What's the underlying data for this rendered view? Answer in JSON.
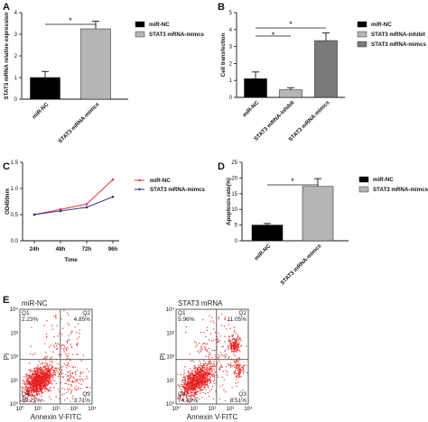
{
  "chart_data": [
    {
      "panel": "A",
      "type": "bar",
      "categories": [
        "miR-NC",
        "STAT3 mRNA-mimcs"
      ],
      "values": [
        1.0,
        3.25
      ],
      "errors": [
        0.28,
        0.35
      ],
      "ylabel": "STAT3 mRNA relative expression",
      "ylim": [
        0,
        4
      ],
      "yticks": [
        "0",
        "1",
        "2",
        "3",
        "4"
      ],
      "colors": [
        "#000000",
        "#b5b5b5"
      ],
      "legend": [
        "miR-NC",
        "STAT3 mRNA-mimcs"
      ],
      "significance": "*"
    },
    {
      "panel": "B",
      "type": "bar",
      "categories": [
        "miR-NC",
        "STAT3 mRNA-inhibit",
        "STAT3 mRNA-mimcs"
      ],
      "values": [
        1.1,
        0.45,
        3.35
      ],
      "errors": [
        0.4,
        0.12,
        0.45
      ],
      "ylabel": "Cell transfection",
      "ylim": [
        0,
        5
      ],
      "yticks": [
        "0",
        "1",
        "2",
        "3",
        "4",
        "5"
      ],
      "colors": [
        "#000000",
        "#b5b5b5",
        "#7a7a7a"
      ],
      "legend": [
        "miR-NC",
        "STAT3 mRNA-inhibit",
        "STAT3 mRNA-mimcs"
      ],
      "significance": [
        "*",
        "*"
      ]
    },
    {
      "panel": "C",
      "type": "line",
      "x": [
        "24h",
        "48h",
        "72h",
        "96h"
      ],
      "xlabel": "Time",
      "ylabel": "OD450nm",
      "ylim": [
        0.0,
        1.5
      ],
      "yticks": [
        "0.0",
        "0.5",
        "1.0",
        "1.5"
      ],
      "series": [
        {
          "name": "miR-NC",
          "values": [
            0.5,
            0.6,
            0.7,
            1.17
          ],
          "color": "#e8333a"
        },
        {
          "name": "STAT3 mRNA-mimcs",
          "values": [
            0.5,
            0.57,
            0.64,
            0.84
          ],
          "color": "#2b2f8f"
        }
      ]
    },
    {
      "panel": "D",
      "type": "bar",
      "categories": [
        "miR-NC",
        "STAT3 mRNA-mimcs"
      ],
      "values": [
        5.0,
        17.3
      ],
      "errors": [
        0.5,
        2.5
      ],
      "ylabel": "Apoptosis rate(%)",
      "ylim": [
        0,
        25
      ],
      "yticks": [
        "0",
        "5",
        "10",
        "15",
        "20",
        "25"
      ],
      "colors": [
        "#000000",
        "#b5b5b5"
      ],
      "legend": [
        "miR-NC",
        "STAT3 mRNA-mimcs"
      ],
      "significance": "*"
    }
  ],
  "flow": {
    "panel": "E",
    "plots": [
      {
        "title": "miR-NC",
        "q1": "2.23%",
        "q2": "4.85%",
        "q3": "3.71%",
        "q4": "89.21%"
      },
      {
        "title": "STAT3 mRNA",
        "q1": "5.96%",
        "q2": "11.05%",
        "q3": "8.51%",
        "q4": "74.48%"
      }
    ],
    "q_labels": [
      "Q1",
      "Q2",
      "Q3",
      "Q4"
    ],
    "xlabel": "Annexin V-FITC",
    "ylabel": "PI",
    "xticks": [
      "10⁰",
      "10¹",
      "10²",
      "10³",
      "10⁴"
    ],
    "yticks": [
      "10⁰",
      "10¹",
      "10²",
      "10³",
      "10⁴"
    ],
    "dot_color": "#e62020"
  },
  "panel_letters": [
    "A",
    "B",
    "C",
    "D",
    "E"
  ]
}
